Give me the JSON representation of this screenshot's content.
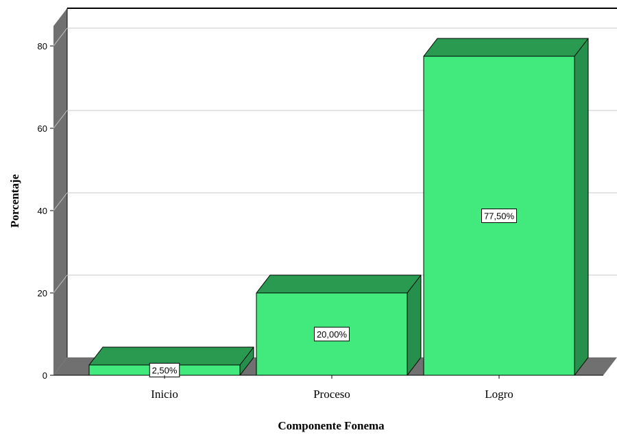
{
  "chart_data": {
    "type": "bar",
    "categories": [
      "Inicio",
      "Proceso",
      "Logro"
    ],
    "values": [
      2.5,
      20.0,
      77.5
    ],
    "data_labels": [
      "2,50%",
      "20,00%",
      "77,50%"
    ],
    "xlabel": "Componente Fonema",
    "ylabel": "Porcentaje",
    "ylim": [
      0,
      80
    ],
    "yticks": [
      0,
      20,
      40,
      60,
      80
    ],
    "grid": true,
    "style": "3d",
    "colors": {
      "bar_front": "#42E97D",
      "bar_top": "#2A9A50",
      "bar_side": "#268F4B",
      "wall": "#707070",
      "grid": "#C8C8C8"
    }
  }
}
